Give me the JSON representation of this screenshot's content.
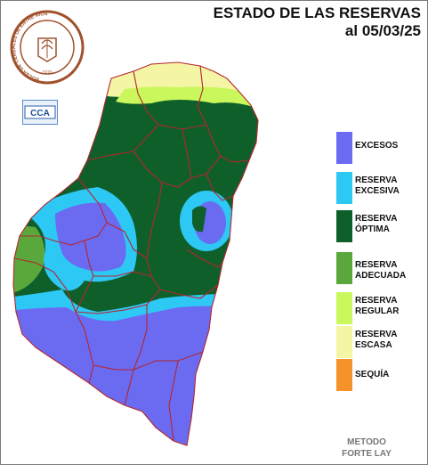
{
  "header": {
    "title_line1": "ESTADO DE LAS RESERVAS",
    "title_line2": "al 05/03/25"
  },
  "seal": {
    "ring_text": "BOLSA DE CEREALES DE ENTRE RÍOS",
    "year": "1970"
  },
  "cca_logo": {
    "text": "CCA"
  },
  "legend": {
    "items": [
      {
        "label_line1": "EXCESOS",
        "label_line2": "",
        "color": "#6b6bf2"
      },
      {
        "label_line1": "RESERVA",
        "label_line2": "EXCESIVA",
        "color": "#2ec8f5"
      },
      {
        "label_line1": "RESERVA",
        "label_line2": "ÓPTIMA",
        "color": "#0f5f2a"
      },
      {
        "label_line1": "RESERVA",
        "label_line2": "ADECUADA",
        "color": "#5aa83c"
      },
      {
        "label_line1": "RESERVA",
        "label_line2": "REGULAR",
        "color": "#c9f75c"
      },
      {
        "label_line1": "RESERVA",
        "label_line2": "ESCASA",
        "color": "#f5f5a6"
      },
      {
        "label_line1": "SEQUÍA",
        "label_line2": "",
        "color": "#f5922a"
      }
    ]
  },
  "method": {
    "line1": "METODO",
    "line2": "FORTE LAY"
  },
  "colors": {
    "border_lines": "#b3262e",
    "seal_ring": "#a0522d"
  }
}
